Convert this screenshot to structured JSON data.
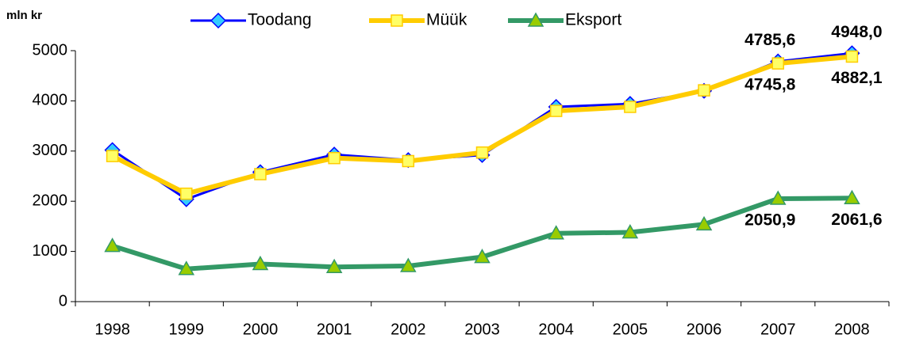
{
  "chart_data": {
    "type": "line",
    "y_label": "mln kr",
    "categories": [
      "1998",
      "1999",
      "2000",
      "2001",
      "2002",
      "2003",
      "2004",
      "2005",
      "2006",
      "2007",
      "2008"
    ],
    "series": [
      {
        "name": "Toodang",
        "color": "#0000ff",
        "marker_fill": "#33ccff",
        "marker": "diamond",
        "values": [
          3020,
          2040,
          2580,
          2930,
          2820,
          2920,
          3880,
          3940,
          4200,
          4785.6,
          4948.0
        ],
        "value_labels": [
          null,
          null,
          null,
          null,
          null,
          null,
          null,
          null,
          null,
          "4785,6",
          "4948,0"
        ]
      },
      {
        "name": "Müük",
        "color": "#ffcc00",
        "marker_fill": "#ffff66",
        "marker": "square",
        "values": [
          2900,
          2150,
          2540,
          2860,
          2800,
          2970,
          3800,
          3880,
          4210,
          4745.8,
          4882.1
        ],
        "value_labels": [
          null,
          null,
          null,
          null,
          null,
          null,
          null,
          null,
          null,
          "4745,8",
          "4882,1"
        ]
      },
      {
        "name": "Eksport",
        "color": "#339966",
        "marker_fill": "#99cc00",
        "marker": "triangle",
        "values": [
          1110,
          650,
          750,
          690,
          710,
          890,
          1360,
          1380,
          1540,
          2050.9,
          2061.6
        ],
        "value_labels": [
          null,
          null,
          null,
          null,
          null,
          null,
          null,
          null,
          null,
          "2050,9",
          "2061,6"
        ]
      }
    ],
    "ylim": [
      0,
      5000
    ],
    "yticks": [
      0,
      1000,
      2000,
      3000,
      4000,
      5000
    ],
    "grid": false,
    "legend": "top"
  }
}
